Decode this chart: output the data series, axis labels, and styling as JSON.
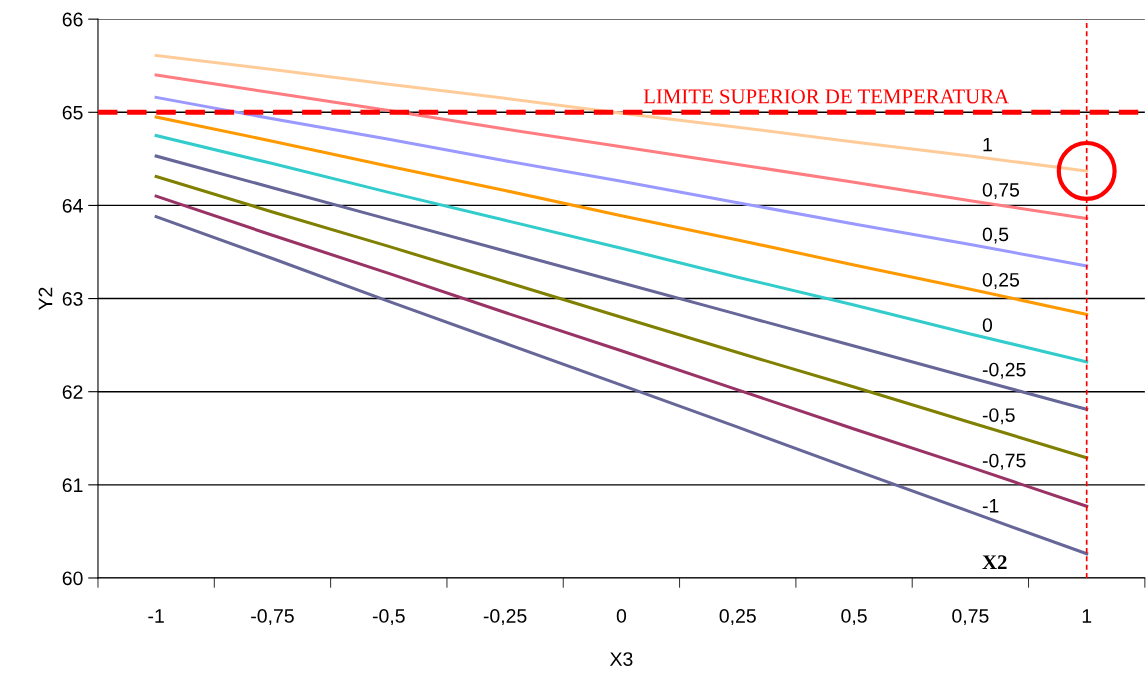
{
  "chart_data": {
    "type": "line",
    "xlabel": "X3",
    "ylabel": "Y2",
    "categories": [
      "-1",
      "-0,75",
      "-0,5",
      "-0,25",
      "0",
      "0,25",
      "0,5",
      "0,75",
      "1"
    ],
    "series": [
      {
        "name": "1",
        "color": "#ffcc99",
        "values": [
          65.61,
          65.46,
          65.3,
          65.15,
          64.99,
          64.84,
          64.68,
          64.53,
          64.37
        ]
      },
      {
        "name": "0,75",
        "color": "#ff7c80",
        "values": [
          65.4,
          65.21,
          65.02,
          64.82,
          64.63,
          64.44,
          64.25,
          64.05,
          63.86
        ]
      },
      {
        "name": "0,5",
        "color": "#9999ff",
        "values": [
          65.16,
          64.93,
          64.71,
          64.48,
          64.26,
          64.03,
          63.8,
          63.58,
          63.35
        ]
      },
      {
        "name": "0,25",
        "color": "#ff9900",
        "values": [
          64.95,
          64.69,
          64.42,
          64.16,
          63.89,
          63.63,
          63.36,
          63.1,
          62.83
        ]
      },
      {
        "name": "0",
        "color": "#33cccc",
        "values": [
          64.75,
          64.45,
          64.14,
          63.84,
          63.54,
          63.23,
          62.93,
          62.62,
          62.32
        ]
      },
      {
        "name": "-0,25",
        "color": "#666699",
        "values": [
          64.53,
          64.19,
          63.85,
          63.51,
          63.17,
          62.83,
          62.49,
          62.15,
          61.81
        ]
      },
      {
        "name": "-0,5",
        "color": "#808000",
        "values": [
          64.31,
          63.93,
          63.56,
          63.18,
          62.8,
          62.42,
          62.05,
          61.67,
          61.29
        ]
      },
      {
        "name": "-0,75",
        "color": "#993366",
        "values": [
          64.1,
          63.68,
          63.27,
          62.85,
          62.44,
          62.02,
          61.6,
          61.19,
          60.77
        ]
      },
      {
        "name": "-1",
        "color": "#666699",
        "values": [
          63.88,
          63.43,
          62.97,
          62.52,
          62.07,
          61.62,
          61.16,
          60.71,
          60.26
        ]
      }
    ],
    "ylim": [
      60,
      66
    ],
    "yticks": [
      60,
      61,
      62,
      63,
      64,
      65,
      66
    ],
    "grid": "y",
    "legend": false,
    "marker": "none",
    "line_style": "solid",
    "ref_lines": [
      {
        "axis": "y",
        "value": 65,
        "label": "LIMITE SUPERIOR DE TEMPERATURA",
        "color": "#ff0000",
        "line_style": "dashed"
      },
      {
        "axis": "x",
        "value": "1",
        "color": "#ff0000",
        "line_style": "dotted"
      }
    ],
    "annotations": [
      "X2"
    ]
  }
}
